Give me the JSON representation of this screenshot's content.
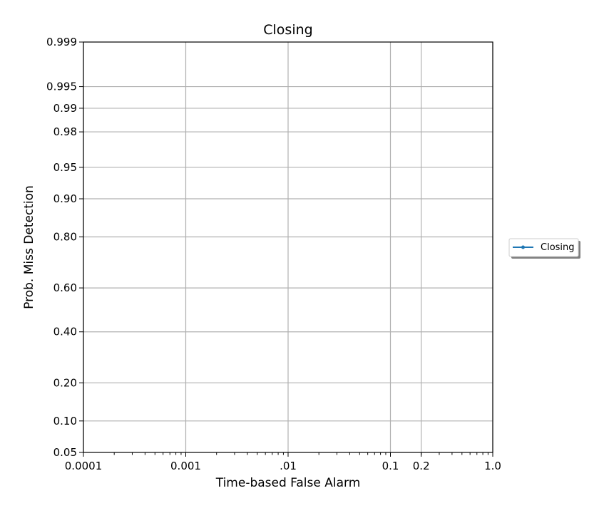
{
  "chart_data": {
    "type": "line",
    "title": "Closing",
    "xlabel": "Time-based False Alarm",
    "ylabel": "Prob. Miss Detection",
    "x_scale": "log",
    "y_scale": "probit",
    "xlim": [
      0.0001,
      1.0
    ],
    "ylim": [
      0.05,
      0.999
    ],
    "x_ticks": [
      {
        "value": 0.0001,
        "label": "0.0001"
      },
      {
        "value": 0.001,
        "label": "0.001"
      },
      {
        "value": 0.01,
        "label": ".01"
      },
      {
        "value": 0.1,
        "label": "0.1"
      },
      {
        "value": 0.2,
        "label": "0.2"
      },
      {
        "value": 1.0,
        "label": "1.0"
      }
    ],
    "y_ticks": [
      {
        "value": 0.05,
        "label": "0.05"
      },
      {
        "value": 0.1,
        "label": "0.10"
      },
      {
        "value": 0.2,
        "label": "0.20"
      },
      {
        "value": 0.4,
        "label": "0.40"
      },
      {
        "value": 0.6,
        "label": "0.60"
      },
      {
        "value": 0.8,
        "label": "0.80"
      },
      {
        "value": 0.9,
        "label": "0.90"
      },
      {
        "value": 0.95,
        "label": "0.95"
      },
      {
        "value": 0.98,
        "label": "0.98"
      },
      {
        "value": 0.99,
        "label": "0.99"
      },
      {
        "value": 0.995,
        "label": "0.995"
      },
      {
        "value": 0.999,
        "label": "0.999"
      }
    ],
    "grid": true,
    "legend_position": "outside-right",
    "series": [
      {
        "name": "Closing",
        "color": "#1f77b4",
        "marker": "dot",
        "x": [],
        "y": []
      }
    ]
  }
}
